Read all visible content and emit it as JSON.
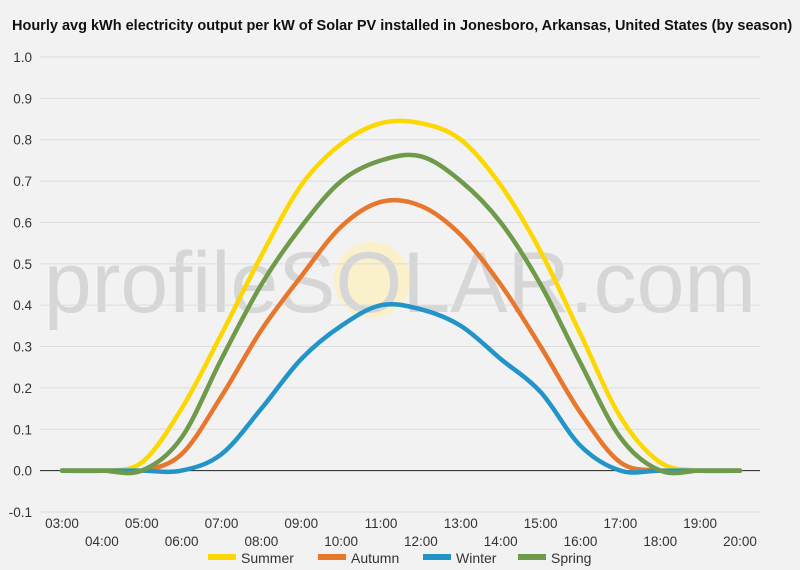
{
  "chart_data": {
    "type": "line",
    "title": "Hourly avg kWh electricity output per kW of Solar PV installed in Jonesboro, Arkansas, United States (by season)",
    "watermark": "profileSOLAR.com",
    "x": [
      "03:00",
      "04:00",
      "05:00",
      "06:00",
      "07:00",
      "08:00",
      "09:00",
      "10:00",
      "11:00",
      "12:00",
      "13:00",
      "14:00",
      "15:00",
      "16:00",
      "17:00",
      "18:00",
      "19:00",
      "20:00"
    ],
    "ylim": [
      -0.1,
      1.0
    ],
    "yticks": [
      -0.1,
      0.0,
      0.1,
      0.2,
      0.3,
      0.4,
      0.5,
      0.6,
      0.7,
      0.8,
      0.9,
      1.0
    ],
    "ytick_labels": [
      "-0.1",
      "0.0",
      "0.1",
      "0.2",
      "0.3",
      "0.4",
      "0.5",
      "0.6",
      "0.7",
      "0.8",
      "0.9",
      "1.0"
    ],
    "grid": true,
    "legend_position": "bottom",
    "series": [
      {
        "name": "Summer",
        "color": "#fcd800",
        "values": [
          0.0,
          0.0,
          0.02,
          0.15,
          0.33,
          0.52,
          0.69,
          0.79,
          0.84,
          0.84,
          0.8,
          0.69,
          0.53,
          0.33,
          0.13,
          0.02,
          0.0,
          0.0
        ]
      },
      {
        "name": "Autumn",
        "color": "#e8772e",
        "values": [
          0.0,
          0.0,
          0.0,
          0.04,
          0.18,
          0.34,
          0.47,
          0.59,
          0.65,
          0.64,
          0.57,
          0.45,
          0.3,
          0.14,
          0.02,
          0.0,
          0.0,
          0.0
        ]
      },
      {
        "name": "Winter",
        "color": "#2394c8",
        "values": [
          0.0,
          0.0,
          0.0,
          0.0,
          0.04,
          0.15,
          0.27,
          0.35,
          0.4,
          0.39,
          0.35,
          0.27,
          0.19,
          0.06,
          0.0,
          0.0,
          0.0,
          0.0
        ]
      },
      {
        "name": "Spring",
        "color": "#6e9a4a",
        "values": [
          0.0,
          0.0,
          0.0,
          0.08,
          0.27,
          0.45,
          0.59,
          0.7,
          0.75,
          0.76,
          0.7,
          0.6,
          0.45,
          0.26,
          0.08,
          0.0,
          0.0,
          0.0
        ]
      }
    ]
  }
}
